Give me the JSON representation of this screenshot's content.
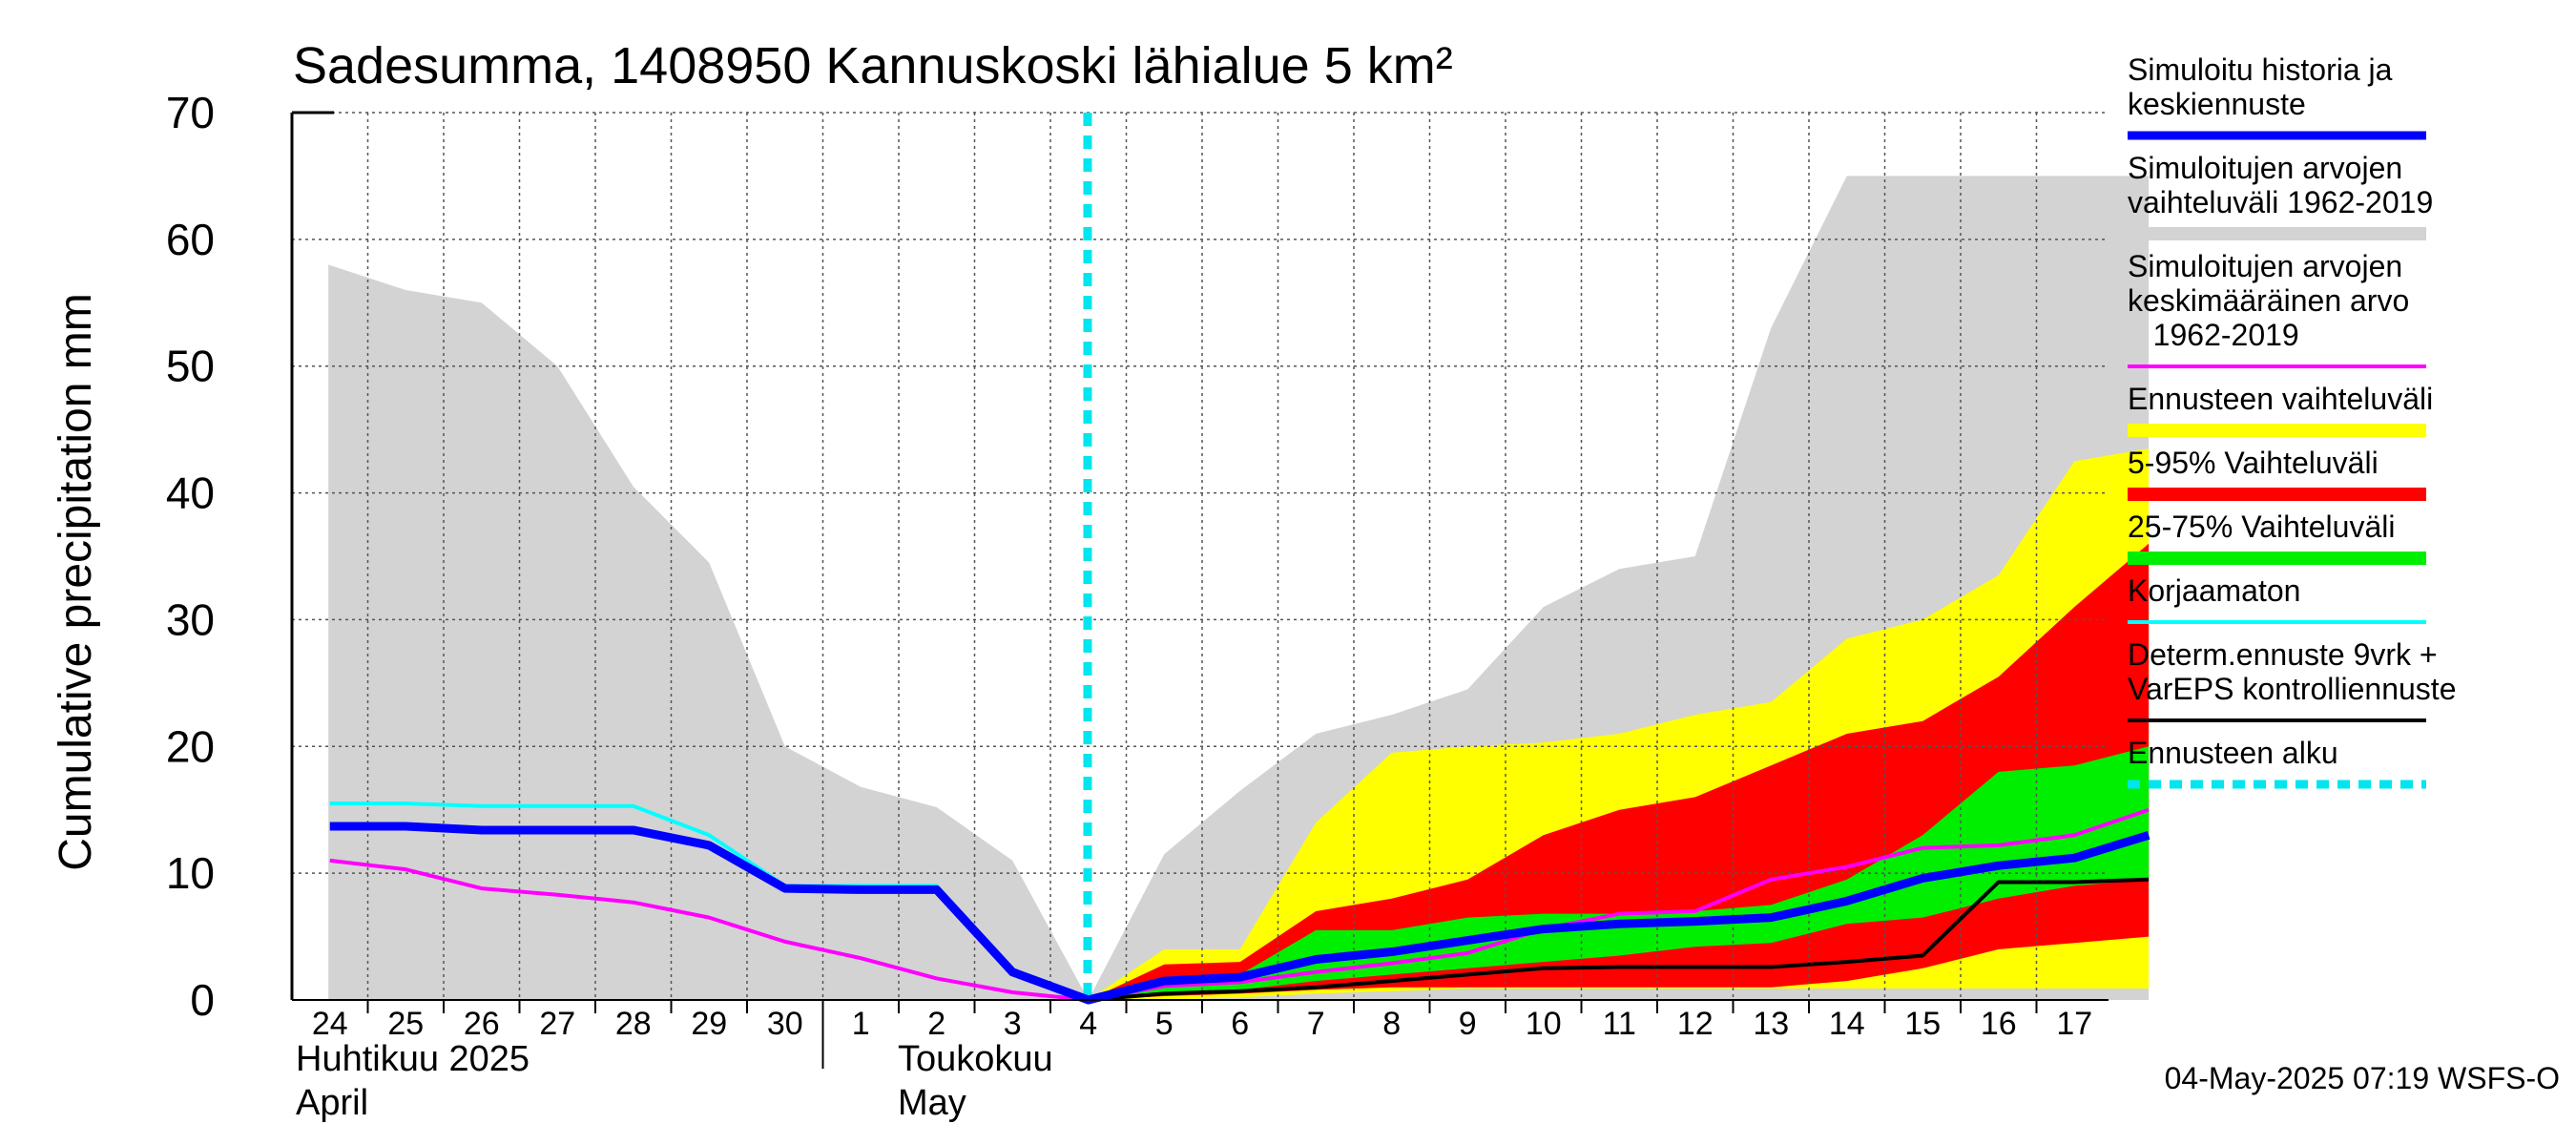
{
  "chart_data": {
    "type": "area",
    "title": "Sadesumma, 1408950 Kannuskoski lähialue 5 km²",
    "ylabel": "Cumulative precipitation   mm",
    "ylim": [
      0,
      70
    ],
    "yticks": [
      0,
      10,
      20,
      30,
      40,
      50,
      60,
      70
    ],
    "grid": true,
    "legend_position": "right",
    "x_labels": [
      "24",
      "25",
      "26",
      "27",
      "28",
      "29",
      "30",
      "1",
      "2",
      "3",
      "4",
      "5",
      "6",
      "7",
      "8",
      "9",
      "10",
      "11",
      "12",
      "13",
      "14",
      "15",
      "16",
      "17"
    ],
    "month_labels": [
      {
        "line1": "Huhtikuu  2025",
        "line2": "April"
      },
      {
        "line1": "Toukokuu",
        "line2": "May"
      }
    ],
    "forecast_start_x": 9.99,
    "series": [
      {
        "name": "Simuloitujen arvojen vaihteluväli 1962-2019",
        "color": "#d3d3d3",
        "kind": "band",
        "x": [
          -0.02,
          1,
          2,
          3,
          4,
          5,
          6,
          7,
          8,
          9,
          10,
          11,
          12,
          13,
          14,
          15,
          16,
          17,
          18,
          19,
          20,
          21,
          22,
          23,
          23.98
        ],
        "upper": [
          58,
          56,
          55,
          50,
          40.5,
          34.5,
          20,
          16.8,
          15.2,
          11,
          0,
          11.5,
          16.5,
          21,
          22.5,
          24.5,
          31,
          34,
          35,
          53,
          65,
          65,
          65,
          65,
          65
        ],
        "lower": [
          0,
          0,
          0,
          0,
          0,
          0,
          0,
          0,
          0,
          0,
          0,
          0,
          0,
          0,
          0,
          0,
          0,
          0,
          0,
          0,
          0,
          0,
          0,
          0,
          0
        ]
      },
      {
        "name": "Ennusteen vaihteluväli",
        "color": "#ffff00",
        "kind": "band",
        "x": [
          10,
          11,
          12,
          13,
          14,
          15,
          16,
          17,
          18,
          19,
          20,
          21,
          22,
          23,
          23.98
        ],
        "upper": [
          0,
          4,
          4,
          14,
          19.5,
          20,
          20.3,
          21,
          22.5,
          23.5,
          28.5,
          30,
          33.5,
          42.5,
          43.5
        ],
        "lower": [
          0,
          0,
          0.2,
          0.5,
          0.7,
          0.9,
          0.9,
          0.9,
          0.9,
          0.9,
          0.9,
          0.9,
          0.9,
          0.9,
          0.9
        ]
      },
      {
        "name": "5-95% Vaihteluväli",
        "color": "#ff0000",
        "kind": "band",
        "x": [
          10,
          11,
          12,
          13,
          14,
          15,
          16,
          17,
          18,
          19,
          20,
          21,
          22,
          23,
          23.98
        ],
        "upper": [
          0,
          2.8,
          3,
          7,
          8,
          9.5,
          13,
          15,
          16,
          18.5,
          21,
          22,
          25.5,
          31,
          36
        ],
        "lower": [
          0,
          0.3,
          0.5,
          0.8,
          1,
          1,
          1,
          1,
          1,
          1,
          1.5,
          2.5,
          4,
          4.5,
          5
        ]
      },
      {
        "name": "25-75% Vaihteluväli",
        "color": "#00ee00",
        "kind": "band",
        "x": [
          10,
          11,
          12,
          13,
          14,
          15,
          16,
          17,
          18,
          19,
          20,
          21,
          22,
          23,
          23.98
        ],
        "upper": [
          0,
          1.7,
          2,
          5.5,
          5.5,
          6.5,
          6.8,
          6.8,
          7,
          7.5,
          9.5,
          13,
          18,
          18.5,
          20
        ],
        "lower": [
          0,
          0.6,
          0.8,
          1.5,
          2,
          2.5,
          3,
          3.5,
          4.2,
          4.5,
          6,
          6.5,
          8,
          9,
          9.5
        ]
      },
      {
        "name": "Simuloitujen arvojen keskimääräinen arvo\n   1962-2019",
        "color": "#ff00ff",
        "kind": "line",
        "width": 4,
        "x": [
          0,
          1,
          2,
          3,
          4,
          5,
          6,
          7,
          8,
          9,
          10,
          11,
          12,
          13,
          14,
          15,
          16,
          17,
          18,
          19,
          20,
          21,
          22,
          23,
          23.98
        ],
        "values": [
          11,
          10.3,
          8.8,
          8.3,
          7.7,
          6.5,
          4.6,
          3.3,
          1.7,
          0.6,
          0,
          1.1,
          1.4,
          2.2,
          2.9,
          3.7,
          5.6,
          6.8,
          7,
          9.5,
          10.5,
          12,
          12.2,
          13,
          15
        ]
      },
      {
        "name": "Korjaamaton",
        "color": "#00ffff",
        "kind": "line",
        "width": 4,
        "x": [
          0,
          1,
          2,
          3,
          4,
          5,
          6,
          7,
          8,
          9,
          10
        ],
        "values": [
          15.5,
          15.5,
          15.3,
          15.3,
          15.3,
          13,
          9,
          9,
          9,
          2.3,
          0
        ]
      },
      {
        "name": "Determ.ennuste 9vrk +\nVarEPS kontrolliennuste",
        "color": "#000000",
        "kind": "line",
        "width": 4,
        "x": [
          10,
          11,
          12,
          13,
          14,
          15,
          16,
          17,
          18,
          19,
          20,
          21,
          22,
          23,
          23.98
        ],
        "values": [
          0,
          0.5,
          0.7,
          1,
          1.5,
          2,
          2.5,
          2.6,
          2.6,
          2.6,
          3,
          3.5,
          9.3,
          9.3,
          9.5
        ]
      },
      {
        "name": "Simuloitu historia ja\nkeskiennuste",
        "color": "#0000ff",
        "kind": "line",
        "width": 9,
        "x": [
          0,
          1,
          2,
          3,
          4,
          5,
          6,
          7,
          8,
          9,
          10,
          11,
          12,
          13,
          14,
          15,
          16,
          17,
          18,
          19,
          20,
          21,
          22,
          23,
          23.98
        ],
        "values": [
          13.7,
          13.7,
          13.4,
          13.4,
          13.4,
          12.2,
          8.8,
          8.7,
          8.7,
          2.2,
          0,
          1.5,
          1.8,
          3.2,
          3.8,
          4.7,
          5.6,
          6,
          6.2,
          6.5,
          7.8,
          9.6,
          10.6,
          11.2,
          13
        ]
      }
    ]
  },
  "legend": [
    {
      "text": "Simuloitu historia ja\nkeskiennuste",
      "color": "#0000ff",
      "style": "line-thick"
    },
    {
      "text": "Simuloitujen arvojen\nvaihteluväli 1962-2019",
      "color": "#d3d3d3",
      "style": "band"
    },
    {
      "text": "Simuloitujen arvojen\nkeskimääräinen arvo\n   1962-2019",
      "color": "#ff00ff",
      "style": "line"
    },
    {
      "text": "Ennusteen vaihteluväli",
      "color": "#ffff00",
      "style": "band"
    },
    {
      "text": "5-95% Vaihteluväli",
      "color": "#ff0000",
      "style": "band"
    },
    {
      "text": "25-75% Vaihteluväli",
      "color": "#00ee00",
      "style": "band"
    },
    {
      "text": "Korjaamaton",
      "color": "#00ffff",
      "style": "line"
    },
    {
      "text": "Determ.ennuste 9vrk +\nVarEPS kontrolliennuste",
      "color": "#000000",
      "style": "line"
    },
    {
      "text": "Ennusteen alku",
      "color": "#00e5ee",
      "style": "dashed"
    }
  ],
  "footer": "04-May-2025 07:19 WSFS-O"
}
